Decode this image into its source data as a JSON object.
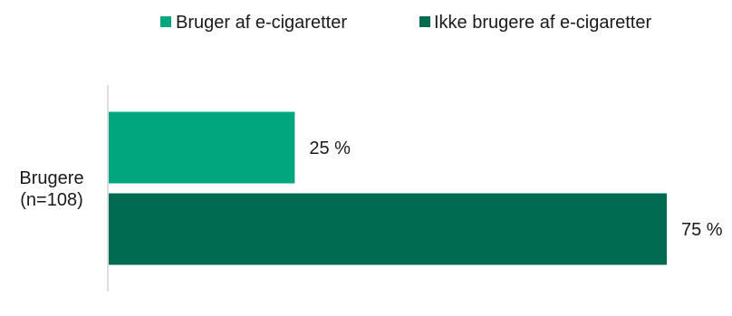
{
  "chart_data": {
    "type": "bar",
    "orientation": "horizontal",
    "categories": [
      "Brugere (n=108)"
    ],
    "category_lines": [
      [
        "Brugere",
        "(n=108)"
      ]
    ],
    "series": [
      {
        "name": "Bruger af e-cigaretter",
        "values": [
          25
        ],
        "color": "#00a67e"
      },
      {
        "name": "Ikke brugere af e-cigaretter",
        "values": [
          75
        ],
        "color": "#006b50"
      }
    ],
    "data_labels": [
      [
        "25 %"
      ],
      [
        "75 %"
      ]
    ],
    "xlim": [
      0,
      75
    ],
    "legend_position": "top",
    "grid": false
  }
}
